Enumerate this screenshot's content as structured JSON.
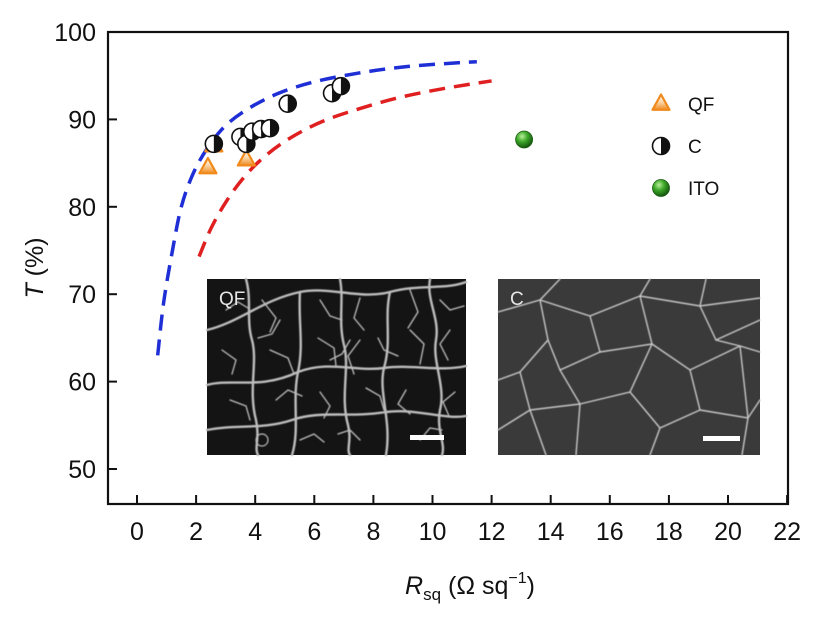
{
  "chart_data": {
    "type": "scatter",
    "title": "",
    "xlabel": {
      "main": "R",
      "sub": "sq",
      "unit_open": " (Ω sq",
      "sup": "−1",
      "unit_close": ")"
    },
    "ylabel": {
      "main": "T",
      "unit": " (%)"
    },
    "xlim": [
      -1,
      22
    ],
    "ylim": [
      46,
      100
    ],
    "xticks": [
      0,
      2,
      4,
      6,
      8,
      10,
      12,
      14,
      16,
      18,
      20,
      22
    ],
    "yticks": [
      50,
      60,
      70,
      80,
      90,
      100
    ],
    "grid": false,
    "legend_position": "top-right",
    "series": [
      {
        "name": "QF",
        "marker": "triangle",
        "color": "#f08a1c",
        "points": [
          [
            2.4,
            84.5
          ],
          [
            2.6,
            87.0
          ],
          [
            3.7,
            85.4
          ]
        ]
      },
      {
        "name": "C",
        "marker": "half-filled-circle",
        "color": "#111111",
        "points": [
          [
            2.6,
            87.2
          ],
          [
            3.5,
            88.0
          ],
          [
            3.7,
            87.2
          ],
          [
            3.9,
            88.6
          ],
          [
            4.2,
            88.9
          ],
          [
            4.5,
            89.0
          ],
          [
            5.1,
            91.8
          ],
          [
            6.6,
            93.0
          ],
          [
            6.9,
            93.8
          ]
        ]
      },
      {
        "name": "ITO",
        "marker": "sphere",
        "color": "#2e8b1e",
        "points": [
          [
            13.1,
            87.7
          ]
        ]
      }
    ],
    "fit_curves": [
      {
        "color": "#1f2fd6",
        "dash": true,
        "points": [
          [
            0.7,
            63
          ],
          [
            0.9,
            69
          ],
          [
            1.2,
            75
          ],
          [
            1.5,
            80
          ],
          [
            1.9,
            83.8
          ],
          [
            2.4,
            86.8
          ],
          [
            3.0,
            89.3
          ],
          [
            3.8,
            91.3
          ],
          [
            4.8,
            93.0
          ],
          [
            6.0,
            94.3
          ],
          [
            7.5,
            95.3
          ],
          [
            9.0,
            96.0
          ],
          [
            10.5,
            96.4
          ],
          [
            11.5,
            96.6
          ]
        ]
      },
      {
        "color": "#e02020",
        "dash": true,
        "points": [
          [
            2.1,
            74.3
          ],
          [
            2.5,
            77.5
          ],
          [
            3.0,
            80.5
          ],
          [
            3.6,
            83.3
          ],
          [
            4.3,
            85.7
          ],
          [
            5.2,
            87.9
          ],
          [
            6.3,
            89.8
          ],
          [
            7.6,
            91.3
          ],
          [
            9.0,
            92.6
          ],
          [
            10.5,
            93.6
          ],
          [
            12.0,
            94.4
          ]
        ]
      }
    ],
    "insets": [
      {
        "label": "QF",
        "pattern": "branching-network"
      },
      {
        "label": "C",
        "pattern": "crack-network"
      }
    ]
  }
}
